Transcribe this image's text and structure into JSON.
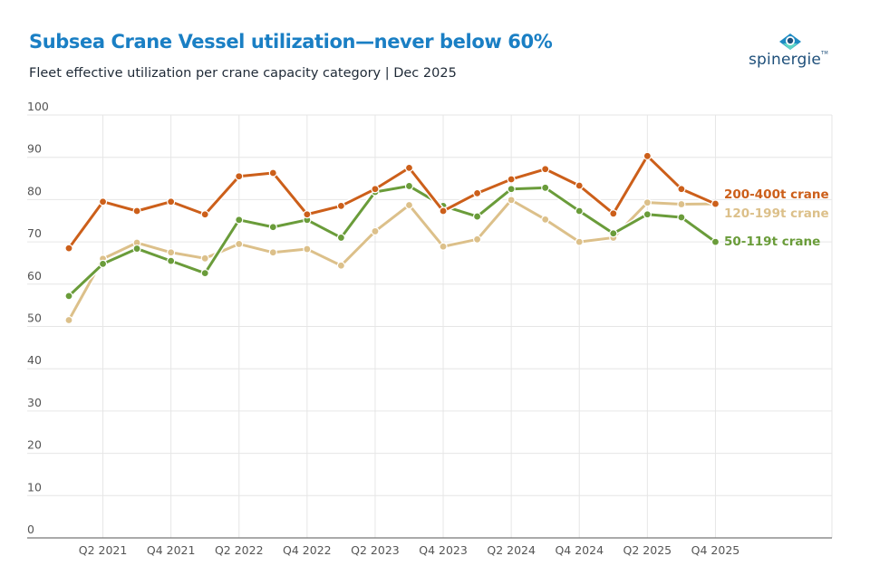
{
  "header": {
    "title": "Subsea Crane Vessel utilization—never below 60%",
    "subtitle": "Fleet effective utilization per crane capacity category | Dec 2025",
    "logo_text": "spinergie"
  },
  "colors": {
    "title": "#1a7fc4",
    "series_200_400": "#cc5f1a",
    "series_120_199": "#dcc08a",
    "series_50_119": "#6a9c3a",
    "grid": "#e6e6e6",
    "axis": "#777777"
  },
  "chart_data": {
    "type": "line",
    "title": "Subsea Crane Vessel utilization—never below 60%",
    "subtitle": "Fleet effective utilization per crane capacity category | Dec 2025",
    "xlabel": "",
    "ylabel": "",
    "ylim": [
      0,
      100
    ],
    "yticks": [
      0,
      10,
      20,
      30,
      40,
      50,
      60,
      70,
      80,
      90,
      100
    ],
    "grid": true,
    "legend_position": "inline-right",
    "x": [
      "Q1 2021",
      "Q2 2021",
      "Q3 2021",
      "Q4 2021",
      "Q1 2022",
      "Q2 2022",
      "Q3 2022",
      "Q4 2022",
      "Q1 2023",
      "Q2 2023",
      "Q3 2023",
      "Q4 2023",
      "Q1 2024",
      "Q2 2024",
      "Q3 2024",
      "Q4 2024",
      "Q1 2025",
      "Q2 2025",
      "Q3 2025",
      "Q4 2025"
    ],
    "xtick_labels": [
      "Q2 2021",
      "Q4 2021",
      "Q2 2022",
      "Q4 2022",
      "Q2 2023",
      "Q4 2023",
      "Q2 2024",
      "Q4 2024",
      "Q2 2025",
      "Q4 2025"
    ],
    "series": [
      {
        "name": "200-400t crane",
        "color": "#cc5f1a",
        "values": [
          68.5,
          79.5,
          77.3,
          79.5,
          76.5,
          85.5,
          86.3,
          76.5,
          78.5,
          82.5,
          87.5,
          77.3,
          81.5,
          84.8,
          87.2,
          83.3,
          76.7,
          90.3,
          82.5,
          79.0
        ]
      },
      {
        "name": "120-199t crane",
        "color": "#dcc08a",
        "values": [
          51.5,
          66.0,
          69.8,
          67.5,
          66.1,
          69.5,
          67.5,
          68.3,
          64.4,
          72.5,
          78.7,
          68.9,
          70.6,
          79.9,
          75.3,
          70.0,
          71.0,
          79.3,
          78.9,
          79.0
        ]
      },
      {
        "name": "50-119t crane",
        "color": "#6a9c3a",
        "values": [
          57.2,
          64.8,
          68.4,
          65.5,
          62.6,
          75.2,
          73.5,
          75.2,
          71.0,
          81.8,
          83.2,
          78.5,
          76.0,
          82.5,
          82.8,
          77.3,
          72.0,
          76.5,
          75.8,
          70.0
        ]
      }
    ]
  }
}
